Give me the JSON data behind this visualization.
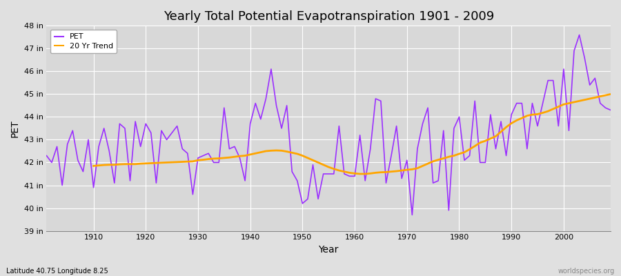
{
  "title": "Yearly Total Potential Evapotranspiration 1901 - 2009",
  "xlabel": "Year",
  "ylabel": "PET",
  "subtitle_left": "Latitude 40.75 Longitude 8.25",
  "watermark": "worldspecies.org",
  "ylim": [
    39,
    48
  ],
  "yticks": [
    39,
    40,
    41,
    42,
    43,
    44,
    45,
    46,
    47,
    48
  ],
  "ytick_labels": [
    "39 in",
    "40 in",
    "41 in",
    "42 in",
    "43 in",
    "44 in",
    "45 in",
    "46 in",
    "47 in",
    "48 in"
  ],
  "pet_color": "#9B30FF",
  "trend_color": "#FFA500",
  "fig_bg": "#E0E0E0",
  "plot_bg": "#D8D8D8",
  "years": [
    1901,
    1902,
    1903,
    1904,
    1905,
    1906,
    1907,
    1908,
    1909,
    1910,
    1911,
    1912,
    1913,
    1914,
    1915,
    1916,
    1917,
    1918,
    1919,
    1920,
    1921,
    1922,
    1923,
    1924,
    1925,
    1926,
    1927,
    1928,
    1929,
    1930,
    1931,
    1932,
    1933,
    1934,
    1935,
    1936,
    1937,
    1938,
    1939,
    1940,
    1941,
    1942,
    1943,
    1944,
    1945,
    1946,
    1947,
    1948,
    1949,
    1950,
    1951,
    1952,
    1953,
    1954,
    1955,
    1956,
    1957,
    1958,
    1959,
    1960,
    1961,
    1962,
    1963,
    1964,
    1965,
    1966,
    1967,
    1968,
    1969,
    1970,
    1971,
    1972,
    1973,
    1974,
    1975,
    1976,
    1977,
    1978,
    1979,
    1980,
    1981,
    1982,
    1983,
    1984,
    1985,
    1986,
    1987,
    1988,
    1989,
    1990,
    1991,
    1992,
    1993,
    1994,
    1995,
    1996,
    1997,
    1998,
    1999,
    2000,
    2001,
    2002,
    2003,
    2004,
    2005,
    2006,
    2007,
    2008,
    2009
  ],
  "pet_values": [
    42.3,
    42.0,
    42.7,
    41.0,
    42.8,
    43.4,
    42.1,
    41.6,
    43.0,
    40.9,
    42.7,
    43.5,
    42.5,
    41.1,
    43.7,
    43.5,
    41.2,
    43.8,
    42.7,
    43.7,
    43.3,
    41.1,
    43.4,
    43.0,
    43.3,
    43.6,
    42.6,
    42.4,
    40.6,
    42.2,
    42.3,
    42.4,
    42.0,
    42.0,
    44.4,
    42.6,
    42.7,
    42.2,
    41.2,
    43.7,
    44.6,
    43.9,
    44.8,
    46.1,
    44.5,
    43.5,
    44.5,
    41.6,
    41.2,
    40.2,
    40.4,
    41.9,
    40.4,
    41.5,
    41.5,
    41.5,
    43.6,
    41.5,
    41.4,
    41.4,
    43.2,
    41.2,
    42.6,
    44.8,
    44.7,
    41.1,
    42.3,
    43.6,
    41.3,
    42.1,
    39.7,
    42.6,
    43.7,
    44.4,
    41.1,
    41.2,
    43.4,
    39.9,
    43.5,
    44.0,
    42.1,
    42.3,
    44.7,
    42.0,
    42.0,
    44.1,
    42.6,
    43.8,
    42.3,
    44.1,
    44.6,
    44.6,
    42.6,
    44.6,
    43.6,
    44.6,
    45.6,
    45.6,
    43.6,
    46.1,
    43.4,
    46.9,
    47.6,
    46.6,
    45.4,
    45.7,
    44.6,
    44.4,
    44.3
  ],
  "trend_years": [
    1910,
    1911,
    1912,
    1913,
    1914,
    1915,
    1916,
    1917,
    1918,
    1919,
    1920,
    1921,
    1922,
    1923,
    1924,
    1925,
    1926,
    1927,
    1928,
    1929,
    1930,
    1931,
    1932,
    1933,
    1934,
    1935,
    1936,
    1937,
    1938,
    1939,
    1940,
    1941,
    1942,
    1943,
    1944,
    1945,
    1946,
    1947,
    1948,
    1949,
    1950,
    1951,
    1952,
    1953,
    1954,
    1955,
    1956,
    1957,
    1958,
    1959,
    1960,
    1961,
    1962,
    1963,
    1964,
    1965,
    1966,
    1967,
    1968,
    1969,
    1970,
    1971,
    1972,
    1973,
    1974,
    1975,
    1976,
    1977,
    1978,
    1979,
    1980,
    1981,
    1982,
    1983,
    1984,
    1985,
    1986,
    1987,
    1988,
    1989,
    1990,
    1991,
    1992,
    1993,
    1994,
    1995,
    1996,
    1997,
    1998,
    1999,
    2000,
    2001,
    2002,
    2003,
    2004,
    2005,
    2006,
    2007,
    2008,
    2009
  ],
  "trend_values": [
    41.85,
    41.87,
    41.89,
    41.9,
    41.9,
    41.92,
    41.93,
    41.93,
    41.93,
    41.95,
    41.96,
    41.97,
    41.98,
    41.99,
    42.0,
    42.01,
    42.02,
    42.03,
    42.04,
    42.05,
    42.1,
    42.12,
    42.15,
    42.17,
    42.18,
    42.2,
    42.22,
    42.25,
    42.28,
    42.3,
    42.35,
    42.4,
    42.45,
    42.5,
    42.52,
    42.53,
    42.52,
    42.48,
    42.43,
    42.38,
    42.3,
    42.2,
    42.1,
    42.0,
    41.9,
    41.8,
    41.72,
    41.65,
    41.6,
    41.55,
    41.52,
    41.5,
    41.5,
    41.52,
    41.55,
    41.57,
    41.58,
    41.6,
    41.62,
    41.65,
    41.68,
    41.7,
    41.75,
    41.85,
    41.95,
    42.05,
    42.12,
    42.18,
    42.25,
    42.3,
    42.38,
    42.45,
    42.58,
    42.72,
    42.87,
    42.95,
    43.05,
    43.15,
    43.35,
    43.55,
    43.72,
    43.85,
    43.95,
    44.05,
    44.1,
    44.12,
    44.18,
    44.25,
    44.35,
    44.45,
    44.55,
    44.6,
    44.65,
    44.7,
    44.75,
    44.8,
    44.85,
    44.9,
    44.95,
    45.0
  ]
}
